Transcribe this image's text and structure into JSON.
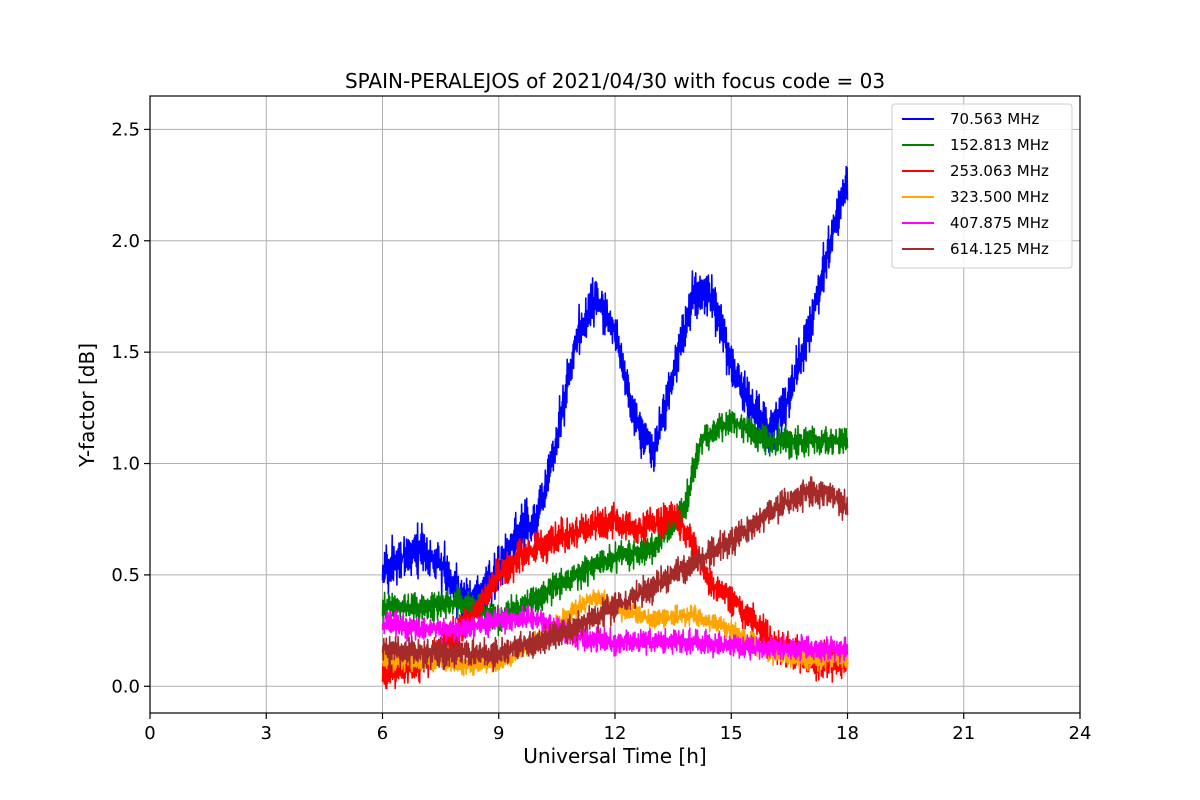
{
  "chart_data": {
    "type": "line",
    "title": "SPAIN-PERALEJOS of 2021/04/30 with focus code = 03",
    "xlabel": "Universal Time [h]",
    "ylabel": "Y-factor [dB]",
    "xlim": [
      0,
      24
    ],
    "ylim": [
      -0.12,
      2.65
    ],
    "xticks": [
      0,
      3,
      6,
      9,
      12,
      15,
      18,
      21,
      24
    ],
    "yticks": [
      0.0,
      0.5,
      1.0,
      1.5,
      2.0,
      2.5
    ],
    "xtick_labels": [
      "0",
      "3",
      "6",
      "9",
      "12",
      "15",
      "18",
      "21",
      "24"
    ],
    "ytick_labels": [
      "0.0",
      "0.5",
      "1.0",
      "1.5",
      "2.0",
      "2.5"
    ],
    "grid": true,
    "legend_position": "top-right",
    "series": [
      {
        "name": " 70.563 MHz",
        "color": "#0000ff",
        "noise": 0.1,
        "x": [
          6,
          6.5,
          7,
          7.5,
          8,
          8.3,
          8.8,
          9.5,
          10,
          10.3,
          10.6,
          11,
          11.5,
          12,
          12.5,
          13,
          13.5,
          14,
          14.5,
          15,
          15.5,
          16,
          16.5,
          17,
          17.5,
          18
        ],
        "y": [
          0.5,
          0.58,
          0.62,
          0.55,
          0.4,
          0.38,
          0.45,
          0.7,
          0.75,
          0.95,
          1.2,
          1.55,
          1.75,
          1.6,
          1.2,
          1.05,
          1.4,
          1.75,
          1.75,
          1.45,
          1.25,
          1.15,
          1.3,
          1.6,
          1.95,
          2.3
        ]
      },
      {
        "name": "152.813 MHz",
        "color": "#008000",
        "noise": 0.06,
        "x": [
          6,
          7,
          8,
          9,
          10,
          11,
          12,
          13,
          13.8,
          14.2,
          15,
          16,
          17,
          18
        ],
        "y": [
          0.35,
          0.35,
          0.38,
          0.3,
          0.4,
          0.5,
          0.58,
          0.62,
          0.8,
          1.1,
          1.2,
          1.1,
          1.1,
          1.1
        ]
      },
      {
        "name": "253.063 MHz",
        "color": "#ff0000",
        "noise": 0.07,
        "x": [
          6,
          7,
          8,
          8.5,
          9,
          9.5,
          10,
          11,
          12,
          12.5,
          13,
          13.5,
          14,
          14.5,
          15,
          15.5,
          16,
          17,
          18
        ],
        "y": [
          0.05,
          0.1,
          0.25,
          0.35,
          0.5,
          0.58,
          0.62,
          0.7,
          0.75,
          0.7,
          0.72,
          0.78,
          0.65,
          0.45,
          0.4,
          0.3,
          0.2,
          0.12,
          0.1
        ]
      },
      {
        "name": "323.500 MHz",
        "color": "#ffa500",
        "noise": 0.04,
        "x": [
          6,
          8,
          9,
          10,
          11,
          11.5,
          12,
          13,
          14,
          15,
          16,
          17,
          18
        ],
        "y": [
          0.12,
          0.1,
          0.1,
          0.2,
          0.35,
          0.4,
          0.35,
          0.3,
          0.32,
          0.25,
          0.15,
          0.12,
          0.12
        ]
      },
      {
        "name": "407.875 MHz",
        "color": "#ff00ff",
        "noise": 0.05,
        "x": [
          6,
          7,
          8,
          9,
          10,
          11,
          12,
          13,
          14,
          15,
          16,
          17,
          18
        ],
        "y": [
          0.28,
          0.26,
          0.25,
          0.3,
          0.3,
          0.22,
          0.2,
          0.2,
          0.2,
          0.18,
          0.17,
          0.17,
          0.17
        ]
      },
      {
        "name": "614.125 MHz",
        "color": "#a52a2a",
        "noise": 0.06,
        "x": [
          6,
          7,
          8,
          9,
          10,
          11,
          12,
          13,
          14,
          15,
          16,
          17,
          17.5,
          18
        ],
        "y": [
          0.17,
          0.15,
          0.15,
          0.15,
          0.2,
          0.27,
          0.35,
          0.45,
          0.55,
          0.65,
          0.78,
          0.88,
          0.87,
          0.8
        ]
      }
    ]
  }
}
